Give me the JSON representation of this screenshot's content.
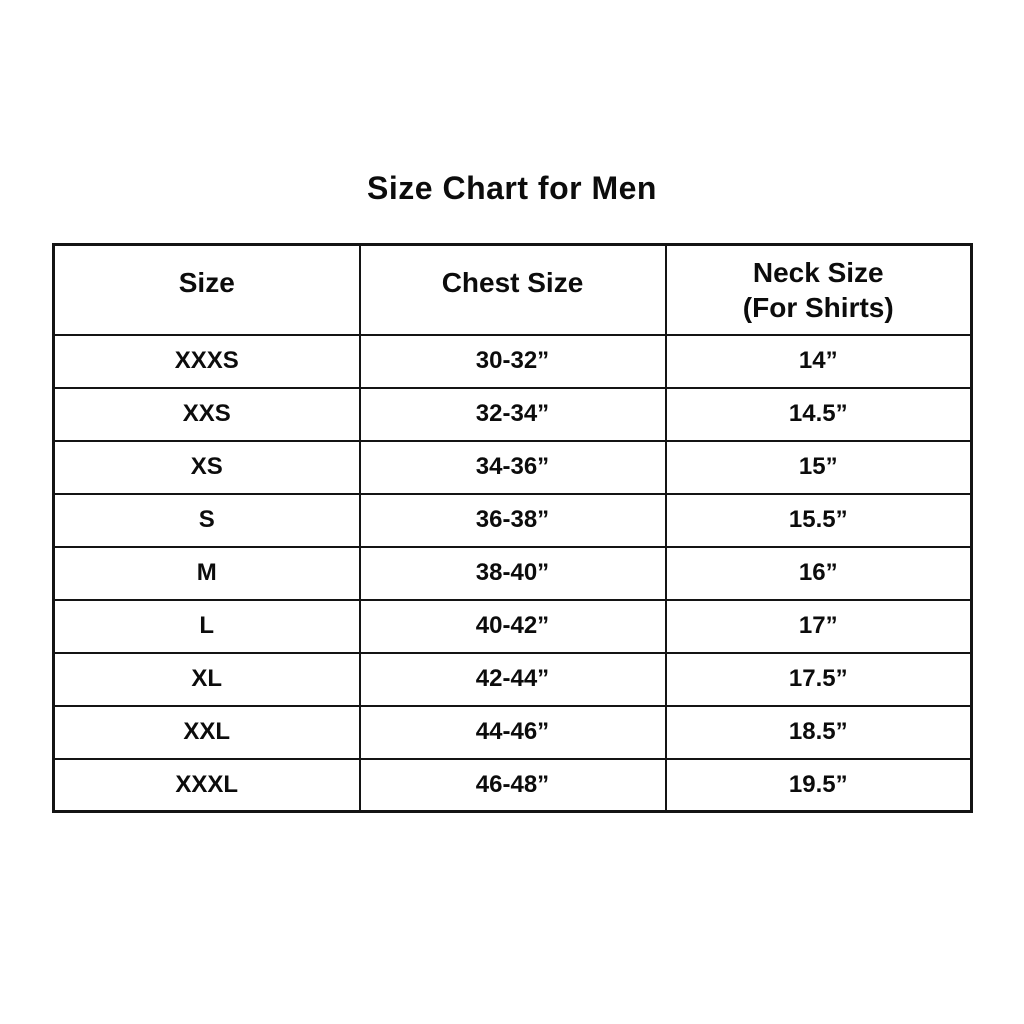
{
  "title": "Size Chart for Men",
  "colors": {
    "background": "#ffffff",
    "text": "#0c0c0c",
    "border": "#141414"
  },
  "table": {
    "header": {
      "size": "Size",
      "chest": "Chest Size",
      "neck_line1": "Neck Size",
      "neck_line2": "(For Shirts)"
    }
  },
  "chart_data": {
    "type": "table",
    "title": "Size Chart for Men",
    "columns": [
      "Size",
      "Chest Size",
      "Neck Size (For Shirts)"
    ],
    "rows": [
      [
        "XXXS",
        "30-32”",
        "14”"
      ],
      [
        "XXS",
        "32-34”",
        "14.5”"
      ],
      [
        "XS",
        "34-36”",
        "15”"
      ],
      [
        "S",
        "36-38”",
        "15.5”"
      ],
      [
        "M",
        "38-40”",
        "16”"
      ],
      [
        "L",
        "40-42”",
        "17”"
      ],
      [
        "XL",
        "42-44”",
        "17.5”"
      ],
      [
        "XXL",
        "44-46”",
        "18.5”"
      ],
      [
        "XXXL",
        "46-48”",
        "19.5”"
      ]
    ]
  }
}
